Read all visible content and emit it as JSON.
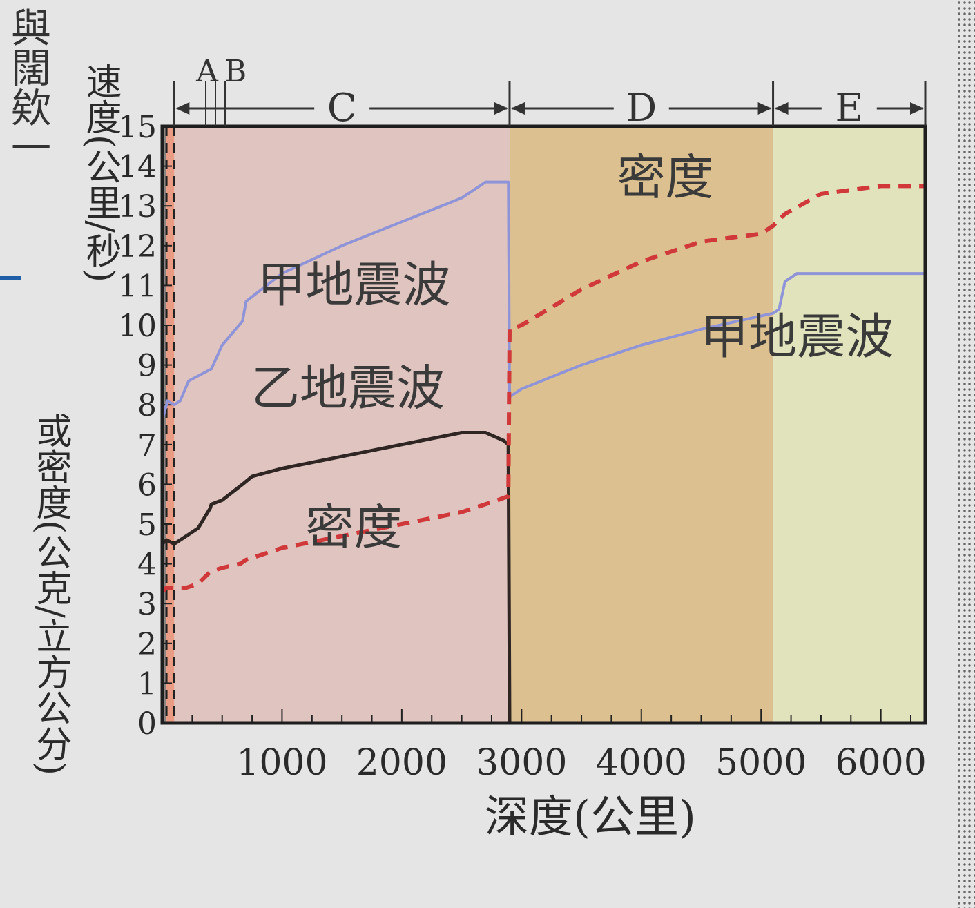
{
  "colors": {
    "zone_A": "#8a8583",
    "zone_B": "#e99b84",
    "zone_C": "#dfc4bf",
    "zone_D": "#dcc090",
    "zone_E": "#e1e3bd",
    "wave_jia": "#8f94d8",
    "wave_yi": "#2f2624",
    "density": "#d0383a"
  },
  "margin_text": "與闊欸一",
  "chart_data": {
    "type": "line",
    "title": "",
    "xlabel": "深度(公里)",
    "ylabel_top": "速度(公里/秒)",
    "ylabel_bottom": "或密度(公克/立方公分)",
    "xlim": [
      0,
      6371
    ],
    "ylim": [
      0,
      15
    ],
    "x_ticks": [
      1000,
      2000,
      3000,
      4000,
      5000,
      6000
    ],
    "y_ticks": [
      0,
      1,
      2,
      3,
      4,
      5,
      6,
      7,
      8,
      9,
      10,
      11,
      12,
      13,
      14,
      15
    ],
    "zones": [
      {
        "label": "A",
        "from": 0,
        "to": 35
      },
      {
        "label": "B",
        "from": 35,
        "to": 100
      },
      {
        "label": "C",
        "from": 100,
        "to": 2900
      },
      {
        "label": "D",
        "from": 2900,
        "to": 5100
      },
      {
        "label": "E",
        "from": 5100,
        "to": 6371
      }
    ],
    "series": [
      {
        "name": "甲地震波",
        "style": "solid",
        "x": [
          0,
          35,
          40,
          100,
          150,
          220,
          410,
          500,
          670,
          700,
          1000,
          1500,
          2000,
          2500,
          2700,
          2850,
          2890,
          2900,
          3000,
          3500,
          4000,
          4500,
          5100,
          5150,
          5200,
          5300,
          5500,
          6000,
          6371
        ],
        "y": [
          7.6,
          8.0,
          8.1,
          8.0,
          8.1,
          8.6,
          8.9,
          9.5,
          10.1,
          10.6,
          11.3,
          12.0,
          12.6,
          13.2,
          13.6,
          13.6,
          13.6,
          8.2,
          8.4,
          9.0,
          9.5,
          9.9,
          10.3,
          10.4,
          11.1,
          11.3,
          11.3,
          11.3,
          11.3
        ]
      },
      {
        "name": "乙地震波",
        "style": "solid",
        "x": [
          0,
          35,
          100,
          200,
          300,
          400,
          410,
          500,
          670,
          750,
          1000,
          1500,
          2000,
          2500,
          2700,
          2850,
          2890,
          2900
        ],
        "y": [
          4.5,
          4.6,
          4.5,
          4.7,
          4.9,
          5.4,
          5.5,
          5.6,
          6.0,
          6.2,
          6.4,
          6.7,
          7.0,
          7.3,
          7.3,
          7.1,
          7.0,
          0
        ]
      },
      {
        "name": "密度",
        "style": "dashed",
        "x": [
          0,
          35,
          100,
          200,
          300,
          400,
          500,
          650,
          700,
          1000,
          1500,
          2000,
          2500,
          2800,
          2890,
          2900,
          3000,
          3500,
          4000,
          4500,
          5000,
          5100,
          5200,
          5500,
          6000,
          6371
        ],
        "y": [
          3.3,
          3.4,
          3.4,
          3.4,
          3.5,
          3.8,
          3.9,
          4.0,
          4.1,
          4.4,
          4.7,
          5.0,
          5.3,
          5.6,
          5.7,
          9.9,
          10.0,
          10.9,
          11.6,
          12.1,
          12.3,
          12.5,
          12.8,
          13.3,
          13.5,
          13.5
        ]
      }
    ],
    "annotations": [
      {
        "text": "甲地震波",
        "x": 1600,
        "y": 10.6
      },
      {
        "text": "乙地震波",
        "x": 1550,
        "y": 8.0
      },
      {
        "text": "密度",
        "x": 1600,
        "y": 4.5
      },
      {
        "text": "密度",
        "x": 4200,
        "y": 13.3
      },
      {
        "text": "甲地震波",
        "x": 5300,
        "y": 9.3
      }
    ]
  }
}
